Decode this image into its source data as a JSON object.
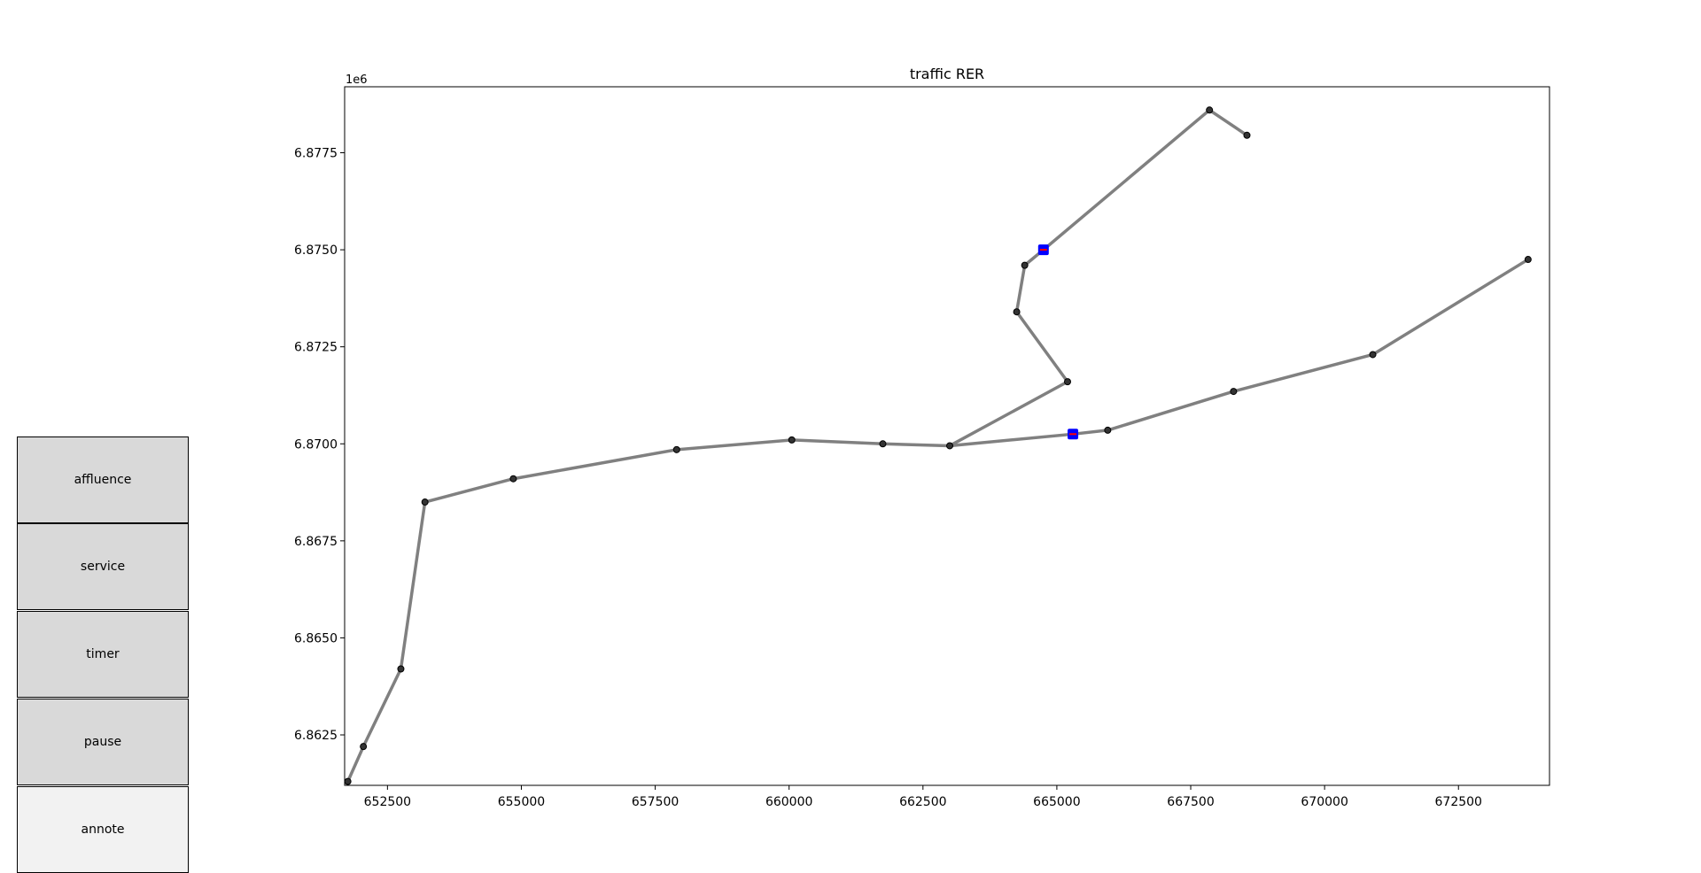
{
  "buttons": [
    {
      "label": "affluence",
      "style": "gray"
    },
    {
      "label": "service",
      "style": "gray"
    },
    {
      "label": "timer",
      "style": "gray"
    },
    {
      "label": "pause",
      "style": "gray"
    },
    {
      "label": "annote",
      "style": "light"
    }
  ],
  "chart_data": {
    "type": "line",
    "title": "traffic RER",
    "xlabel": "",
    "ylabel": "",
    "y_offset_label": "1e6",
    "xlim": [
      651700,
      674200
    ],
    "ylim": [
      6861200,
      6879200
    ],
    "xticks": [
      652500,
      655000,
      657500,
      660000,
      662500,
      665000,
      667500,
      670000,
      672500
    ],
    "xtick_labels": [
      "652500",
      "655000",
      "657500",
      "660000",
      "662500",
      "665000",
      "667500",
      "670000",
      "672500"
    ],
    "yticks": [
      6862500,
      6865000,
      6867500,
      6870000,
      6872500,
      6875000,
      6877500
    ],
    "ytick_labels": [
      "6.8625",
      "6.8650",
      "6.8675",
      "6.8700",
      "6.8725",
      "6.8750",
      "6.8775"
    ],
    "grid": false,
    "line_color": "#808080",
    "station_color": "#000000",
    "train_color": "#0000ff",
    "train_edge_color": "#ff0000",
    "series": [
      {
        "x": [
          651760,
          652050,
          652750,
          653200,
          654850,
          657900,
          660050,
          661750,
          663000
        ],
        "y": [
          6861300,
          6862200,
          6864200,
          6868500,
          6869100,
          6869850,
          6870100,
          6870000,
          6869950
        ]
      },
      {
        "x": [
          663000,
          665300,
          665950,
          668300,
          670900,
          673800
        ],
        "y": [
          6869950,
          6870250,
          6870350,
          6871350,
          6872300,
          6874750
        ]
      },
      {
        "x": [
          663000,
          665200,
          664250,
          664400,
          664750,
          667850,
          668550
        ],
        "y": [
          6869950,
          6871600,
          6873400,
          6874600,
          6875000,
          6878600,
          6877950
        ]
      }
    ],
    "stations": {
      "x": [
        651760,
        652050,
        652750,
        653200,
        654850,
        657900,
        660050,
        661750,
        663000,
        665950,
        668300,
        670900,
        673800,
        665200,
        664250,
        664400,
        667850,
        668550
      ],
      "y": [
        6861300,
        6862200,
        6864200,
        6868500,
        6869100,
        6869850,
        6870100,
        6870000,
        6869950,
        6870350,
        6871350,
        6872300,
        6874750,
        6871600,
        6873400,
        6874600,
        6878600,
        6877950
      ]
    },
    "trains": {
      "x": [
        664750,
        665300
      ],
      "y": [
        6875000,
        6870250
      ]
    }
  }
}
